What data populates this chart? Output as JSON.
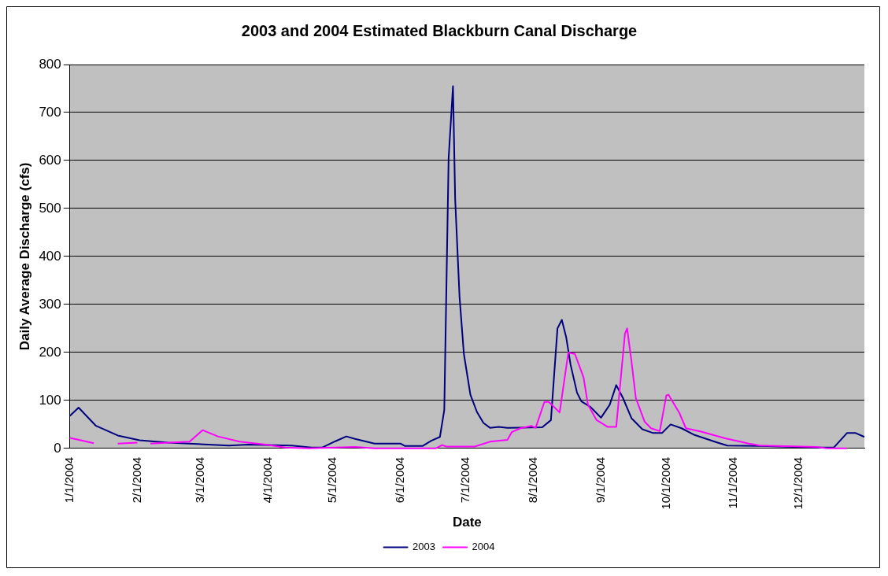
{
  "chart_data": {
    "type": "line",
    "title": "2003 and 2004 Estimated Blackburn Canal Discharge",
    "xlabel": "Date",
    "ylabel": "Daily Average Discharge (cfs)",
    "xlim": [
      "2004-01-01",
      "2004-12-31"
    ],
    "xticks": [
      {
        "value": "2004-01-01",
        "label": "1/1/2004"
      },
      {
        "value": "2004-02-01",
        "label": "2/1/2004"
      },
      {
        "value": "2004-03-01",
        "label": "3/1/2004"
      },
      {
        "value": "2004-04-01",
        "label": "4/1/2004"
      },
      {
        "value": "2004-05-01",
        "label": "5/1/2004"
      },
      {
        "value": "2004-06-01",
        "label": "6/1/2004"
      },
      {
        "value": "2004-07-01",
        "label": "7/1/2004"
      },
      {
        "value": "2004-08-01",
        "label": "8/1/2004"
      },
      {
        "value": "2004-09-01",
        "label": "9/1/2004"
      },
      {
        "value": "2004-10-01",
        "label": "10/1/2004"
      },
      {
        "value": "2004-11-01",
        "label": "11/1/2004"
      },
      {
        "value": "2004-12-01",
        "label": "12/1/2004"
      }
    ],
    "ylim": [
      0,
      800
    ],
    "yticks": [
      0,
      100,
      200,
      300,
      400,
      500,
      600,
      700,
      800
    ],
    "grid": "y",
    "legend": "bottom",
    "marker": "none",
    "line_style": "solid",
    "series": [
      {
        "name": "2003",
        "color": "#000080",
        "x": [
          "2004-01-01",
          "2004-01-05",
          "2004-01-13",
          "2004-01-23",
          "2004-02-02",
          "2004-02-15",
          "2004-03-14",
          "2004-03-23",
          "2004-04-12",
          "2004-04-21",
          "2004-04-26",
          "2004-05-02",
          "2004-05-07",
          "2004-05-11",
          "2004-05-20",
          "2004-06-01",
          "2004-06-03",
          "2004-06-11",
          "2004-06-15",
          "2004-06-19",
          "2004-06-21",
          "2004-06-23",
          "2004-06-25",
          "2004-06-26",
          "2004-06-28",
          "2004-06-30",
          "2004-07-03",
          "2004-07-06",
          "2004-07-09",
          "2004-07-12",
          "2004-07-16",
          "2004-07-20",
          "2004-08-05",
          "2004-08-09",
          "2004-08-12",
          "2004-08-14",
          "2004-08-16",
          "2004-08-18",
          "2004-08-21",
          "2004-08-23",
          "2004-08-27",
          "2004-09-01",
          "2004-09-05",
          "2004-09-08",
          "2004-09-11",
          "2004-09-15",
          "2004-09-20",
          "2004-09-25",
          "2004-09-29",
          "2004-10-03",
          "2004-10-08",
          "2004-10-14",
          "2004-10-24",
          "2004-10-29",
          "2004-11-13",
          "2004-12-09",
          "2004-12-17",
          "2004-12-23",
          "2004-12-27",
          "2004-12-31"
        ],
        "values": [
          68,
          85,
          47,
          27,
          17,
          12,
          6,
          8,
          6,
          2,
          2,
          15,
          25,
          20,
          10,
          10,
          5,
          5,
          16,
          24,
          80,
          605,
          755,
          520,
          317,
          197,
          112,
          76,
          53,
          43,
          45,
          43,
          44,
          59,
          250,
          268,
          232,
          175,
          116,
          98,
          87,
          64,
          91,
          132,
          106,
          63,
          40,
          32,
          32,
          50,
          42,
          28,
          13,
          6,
          5,
          2,
          2,
          32,
          32,
          24
        ]
      },
      {
        "name": "2004",
        "color": "#ff00ff",
        "x": [
          "2004-01-01",
          "2004-01-06",
          "2004-01-12",
          "2004-01-17",
          "2004-01-23",
          "2004-02-01",
          "2004-02-04",
          "2004-02-07",
          "2004-02-16",
          "2004-02-25",
          "2004-03-02",
          "2004-03-09",
          "2004-03-19",
          "2004-03-31",
          "2004-04-09",
          "2004-04-20",
          "2004-05-11",
          "2004-05-20",
          "2004-06-17",
          "2004-06-20",
          "2004-06-22",
          "2004-07-05",
          "2004-07-12",
          "2004-07-20",
          "2004-07-22",
          "2004-07-26",
          "2004-07-31",
          "2004-08-02",
          "2004-08-06",
          "2004-08-08",
          "2004-08-13",
          "2004-08-17",
          "2004-08-20",
          "2004-08-24",
          "2004-08-26",
          "2004-08-30",
          "2004-09-04",
          "2004-09-08",
          "2004-09-12",
          "2004-09-13",
          "2004-09-15",
          "2004-09-17",
          "2004-09-21",
          "2004-09-24",
          "2004-09-28",
          "2004-10-01",
          "2004-10-02",
          "2004-10-07",
          "2004-10-10",
          "2004-10-17",
          "2004-10-28",
          "2004-11-08",
          "2004-11-13",
          "2004-12-09",
          "2004-12-14",
          "2004-12-23"
        ],
        "values": [
          22,
          17,
          11,
          null,
          10,
          12,
          null,
          10,
          12,
          14,
          38,
          25,
          14,
          8,
          2,
          0,
          3,
          0,
          0,
          7,
          4,
          4,
          14,
          18,
          34,
          42,
          47,
          43,
          97,
          97,
          75,
          200,
          197,
          148,
          91,
          59,
          45,
          45,
          239,
          250,
          182,
          105,
          56,
          42,
          36,
          110,
          112,
          74,
          42,
          35,
          21,
          10,
          6,
          3,
          0,
          0
        ]
      }
    ]
  }
}
